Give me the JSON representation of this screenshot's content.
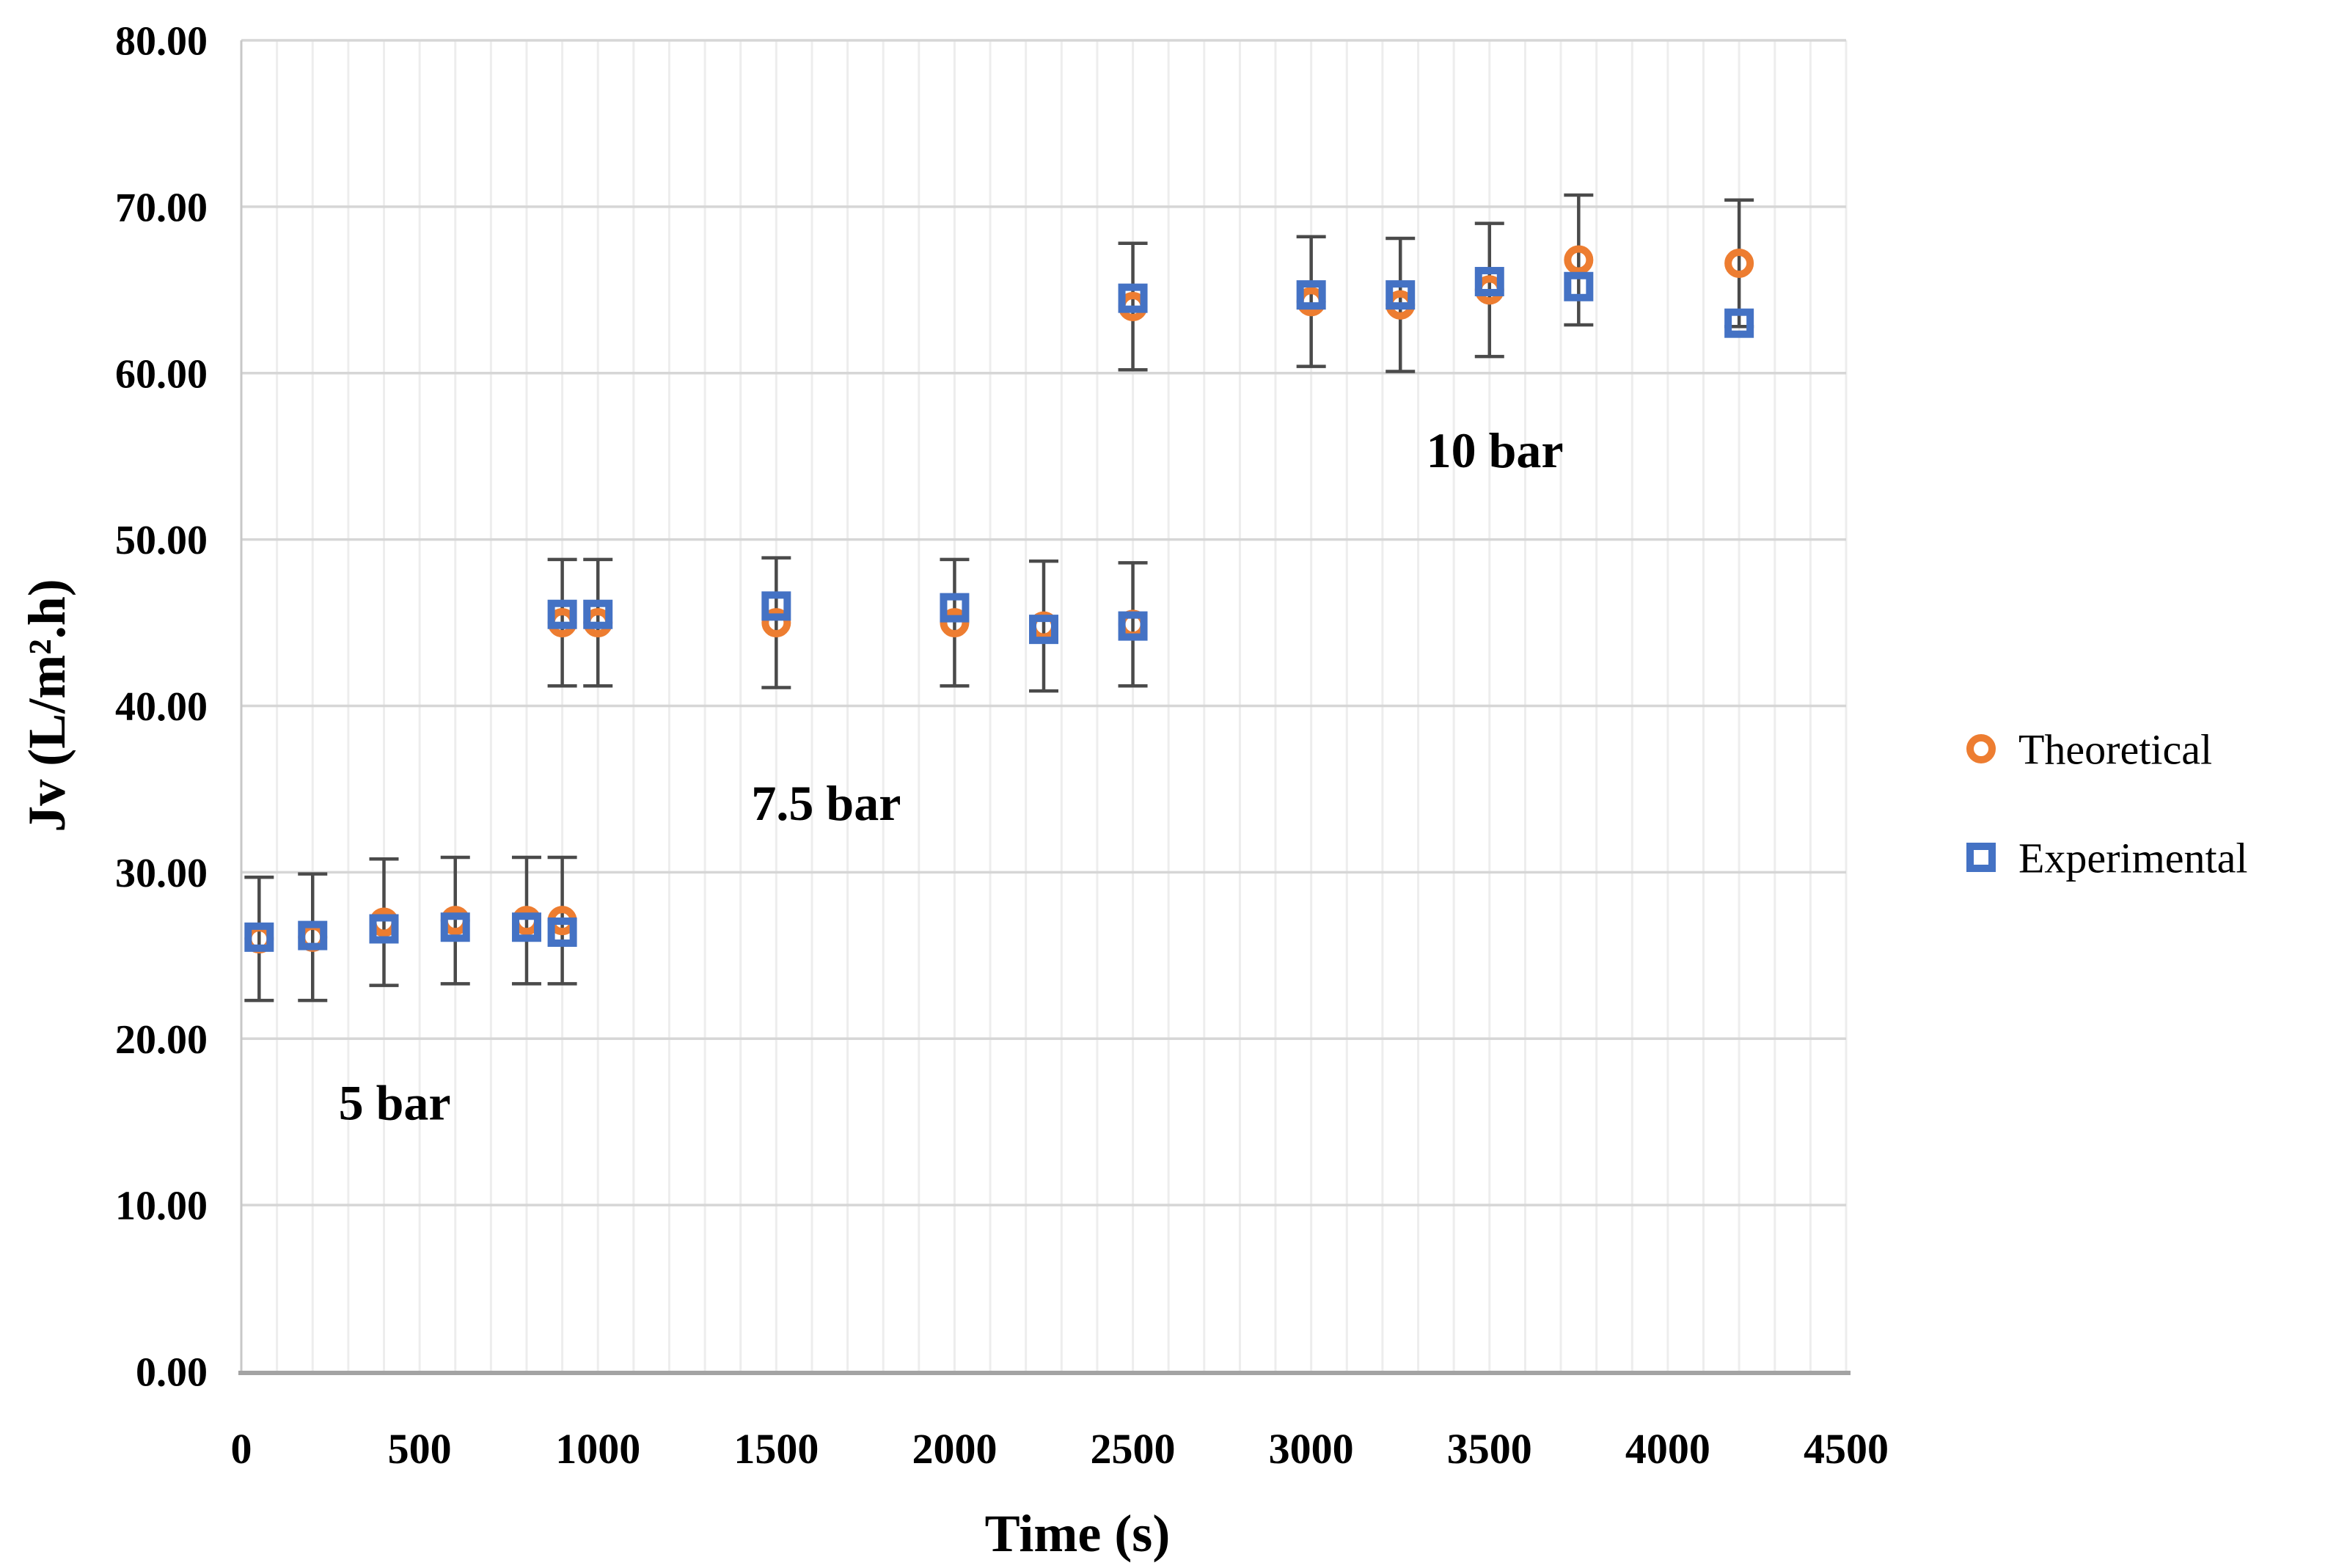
{
  "page": {
    "background": "#ffffff"
  },
  "chart_data": {
    "type": "scatter",
    "title": "",
    "xlabel": "Time (s)",
    "ylabel": "Jv (L/m².h)",
    "xlim": [
      0,
      4500
    ],
    "ylim": [
      0,
      80
    ],
    "x_major_tick_step": 500,
    "x_minor_grid_step": 100,
    "y_major_tick_step": 10,
    "x_tick_labels": [
      "0",
      "500",
      "1000",
      "1500",
      "2000",
      "2500",
      "3000",
      "3500",
      "4000",
      "4500"
    ],
    "y_tick_labels": [
      "0.00",
      "10.00",
      "20.00",
      "30.00",
      "40.00",
      "50.00",
      "60.00",
      "70.00",
      "80.00"
    ],
    "grid": {
      "horizontal_major": true,
      "vertical_minor": true,
      "legend_position": "right-middle"
    },
    "colors": {
      "theoretical": "#ED7D31",
      "experimental": "#4472C4",
      "error_bar": "#4A4A4A",
      "grid_horizontal": "#D6D6D6",
      "grid_vertical": "#EDEDED",
      "y_axis_line": "#C8C8C8",
      "x_axis_line": "#A3A3A3",
      "text": "#000000"
    },
    "error_bars": {
      "attached_to": "Theoretical",
      "color": "#4A4A4A"
    },
    "series": [
      {
        "name": "Theoretical",
        "marker": "circle",
        "color": "#ED7D31",
        "points": [
          {
            "x": 50,
            "y": 26.0,
            "err": 3.7
          },
          {
            "x": 200,
            "y": 26.1,
            "err": 3.8
          },
          {
            "x": 400,
            "y": 27.0,
            "err": 3.8
          },
          {
            "x": 600,
            "y": 27.1,
            "err": 3.8
          },
          {
            "x": 800,
            "y": 27.1,
            "err": 3.8
          },
          {
            "x": 900,
            "y": 27.1,
            "err": 3.8
          },
          {
            "x": 900,
            "y": 45.0,
            "err": 3.8
          },
          {
            "x": 1000,
            "y": 45.0,
            "err": 3.8
          },
          {
            "x": 1500,
            "y": 45.0,
            "err": 3.9
          },
          {
            "x": 2000,
            "y": 45.0,
            "err": 3.8
          },
          {
            "x": 2250,
            "y": 44.8,
            "err": 3.9
          },
          {
            "x": 2500,
            "y": 44.9,
            "err": 3.7
          },
          {
            "x": 2500,
            "y": 64.0,
            "err": 3.8
          },
          {
            "x": 3000,
            "y": 64.3,
            "err": 3.9
          },
          {
            "x": 3250,
            "y": 64.1,
            "err": 4.0
          },
          {
            "x": 3500,
            "y": 65.0,
            "err": 4.0
          },
          {
            "x": 3750,
            "y": 66.8,
            "err": 3.9
          },
          {
            "x": 4200,
            "y": 66.6,
            "err": 3.8
          }
        ]
      },
      {
        "name": "Experimental",
        "marker": "square",
        "color": "#4472C4",
        "points": [
          {
            "x": 50,
            "y": 26.1
          },
          {
            "x": 200,
            "y": 26.2
          },
          {
            "x": 400,
            "y": 26.6
          },
          {
            "x": 600,
            "y": 26.7
          },
          {
            "x": 800,
            "y": 26.7
          },
          {
            "x": 900,
            "y": 26.4
          },
          {
            "x": 900,
            "y": 45.5
          },
          {
            "x": 1000,
            "y": 45.5
          },
          {
            "x": 1500,
            "y": 46.0
          },
          {
            "x": 2000,
            "y": 45.9
          },
          {
            "x": 2250,
            "y": 44.6
          },
          {
            "x": 2500,
            "y": 44.8
          },
          {
            "x": 2500,
            "y": 64.5
          },
          {
            "x": 3000,
            "y": 64.7
          },
          {
            "x": 3250,
            "y": 64.7
          },
          {
            "x": 3500,
            "y": 65.5
          },
          {
            "x": 3750,
            "y": 65.2
          },
          {
            "x": 4200,
            "y": 63.0
          }
        ]
      }
    ],
    "annotations": [
      {
        "text": "5 bar",
        "x": 430,
        "y": 16.2
      },
      {
        "text": "7.5 bar",
        "x": 1640,
        "y": 34.2
      },
      {
        "text": "10 bar",
        "x": 3515,
        "y": 55.4
      }
    ],
    "legend": {
      "entries": [
        {
          "label": "Theoretical",
          "marker": "circle",
          "color": "#ED7D31"
        },
        {
          "label": "Experimental",
          "marker": "square",
          "color": "#4472C4"
        }
      ]
    }
  }
}
